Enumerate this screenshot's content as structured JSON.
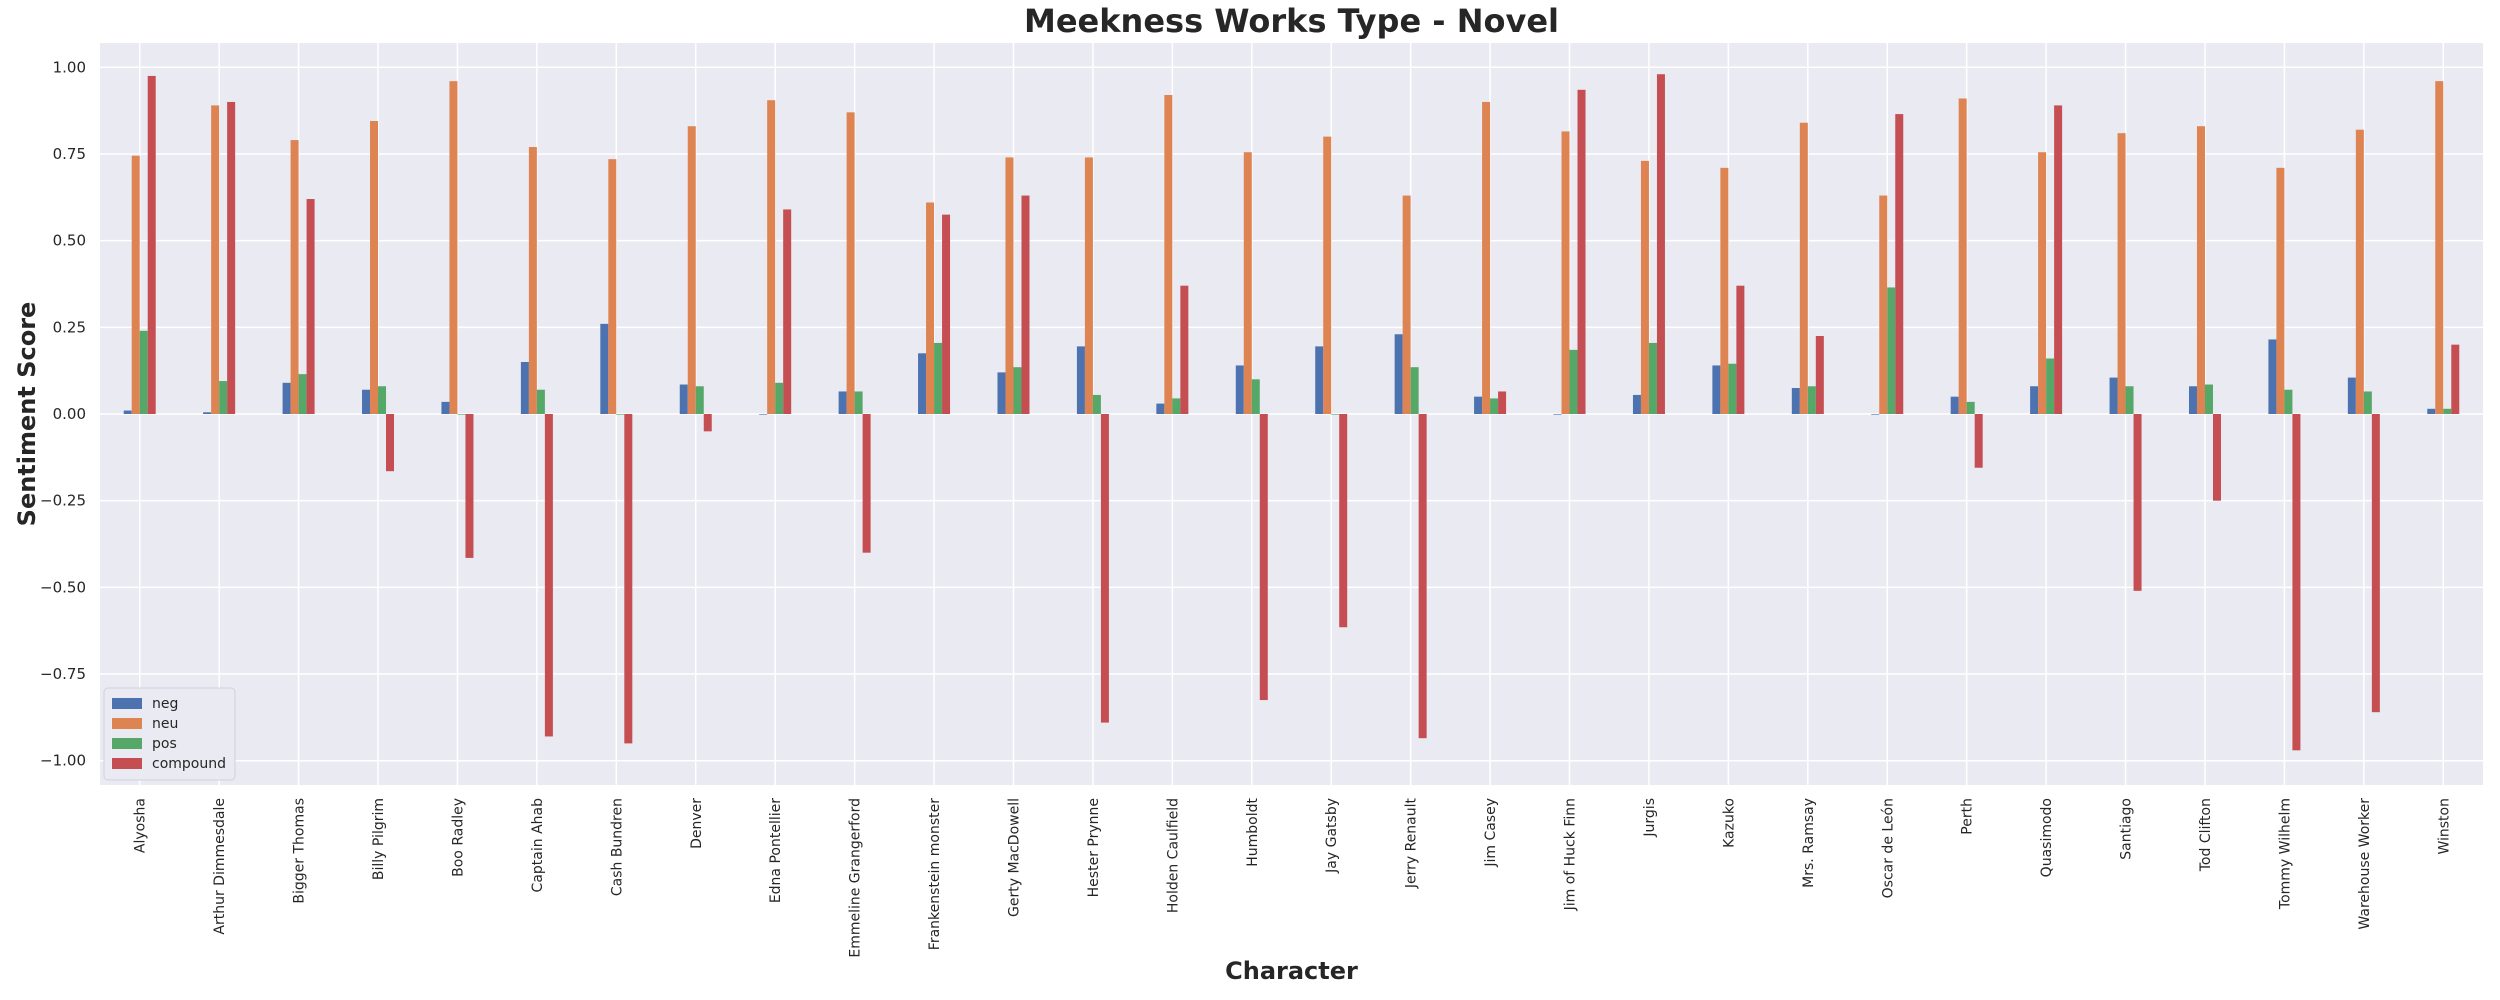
{
  "chart_data": {
    "type": "bar",
    "title": "Meekness Works Type - Novel",
    "xlabel": "Character",
    "ylabel": "Sentiment Score",
    "ylim": [
      -1.07,
      1.07
    ],
    "yticks": [
      "1.00",
      "0.75",
      "0.50",
      "0.25",
      "0.00",
      "−0.25",
      "−0.50",
      "−0.75",
      "−1.00"
    ],
    "ytick_values": [
      1.0,
      0.75,
      0.5,
      0.25,
      0.0,
      -0.25,
      -0.5,
      -0.75,
      -1.0
    ],
    "grid": true,
    "legend_placement": "lower-left",
    "categories": [
      "Alyosha",
      "Arthur Dimmesdale",
      "Bigger Thomas",
      "Billy Pilgrim",
      "Boo Radley",
      "Captain Ahab",
      "Cash Bundren",
      "Denver",
      "Edna Pontellier",
      "Emmeline Grangerford",
      "Frankenstein monster",
      "Gerty MacDowell",
      "Hester Prynne",
      "Holden Caulfield",
      "Humboldt",
      "Jay Gatsby",
      "Jerry Renault",
      "Jim Casey",
      "Jim of Huck Finn",
      "Jurgis",
      "Kazuko",
      "Mrs. Ramsay",
      "Oscar de León",
      "Perth",
      "Quasimodo",
      "Santiago",
      "Tod Clifton",
      "Tommy Wilhelm",
      "Warehouse Worker",
      "Winston"
    ],
    "series": [
      {
        "name": "neg",
        "color": "#4c72b0",
        "values": [
          0.01,
          0.005,
          0.09,
          0.07,
          0.035,
          0.15,
          0.26,
          0.085,
          0.0,
          0.065,
          0.175,
          0.12,
          0.195,
          0.03,
          0.14,
          0.195,
          0.23,
          0.05,
          0.0,
          0.055,
          0.14,
          0.075,
          0.0,
          0.05,
          0.08,
          0.105,
          0.08,
          0.215,
          0.105,
          0.015
        ]
      },
      {
        "name": "neu",
        "color": "#dd8452",
        "values": [
          0.745,
          0.89,
          0.79,
          0.845,
          0.96,
          0.77,
          0.735,
          0.83,
          0.905,
          0.87,
          0.61,
          0.74,
          0.74,
          0.92,
          0.755,
          0.8,
          0.63,
          0.9,
          0.815,
          0.73,
          0.71,
          0.84,
          0.63,
          0.91,
          0.755,
          0.81,
          0.83,
          0.71,
          0.82,
          0.96
        ]
      },
      {
        "name": "pos",
        "color": "#55a868",
        "values": [
          0.24,
          0.095,
          0.115,
          0.08,
          0.0,
          0.07,
          0.0,
          0.08,
          0.09,
          0.065,
          0.205,
          0.135,
          0.055,
          0.045,
          0.1,
          0.0,
          0.135,
          0.045,
          0.185,
          0.205,
          0.145,
          0.08,
          0.365,
          0.035,
          0.16,
          0.08,
          0.085,
          0.07,
          0.065,
          0.015
        ]
      },
      {
        "name": "compound",
        "color": "#c44e52",
        "values": [
          0.975,
          0.9,
          0.62,
          -0.165,
          -0.415,
          -0.93,
          -0.95,
          -0.05,
          0.59,
          -0.4,
          0.575,
          0.63,
          -0.89,
          0.37,
          -0.825,
          -0.615,
          -0.935,
          0.065,
          0.935,
          0.98,
          0.37,
          0.225,
          0.865,
          -0.155,
          0.89,
          -0.51,
          -0.25,
          -0.97,
          -0.86,
          0.2
        ]
      }
    ]
  }
}
